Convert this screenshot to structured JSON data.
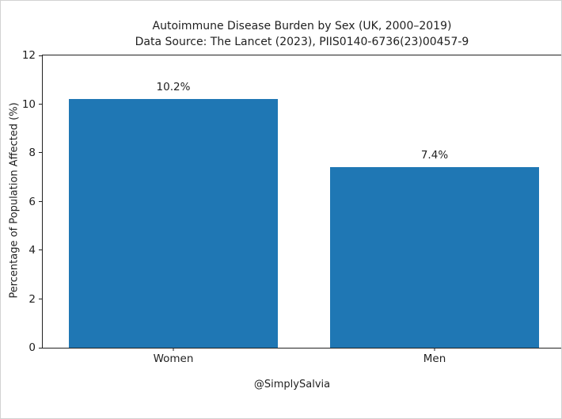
{
  "chart_data": {
    "type": "bar",
    "title": "Autoimmune Disease Burden by Sex (UK, 2000–2019)",
    "subtitle": "Data Source: The Lancet (2023), PIIS0140-6736(23)00457-9",
    "categories": [
      "Women",
      "Men"
    ],
    "values": [
      10.2,
      7.4
    ],
    "value_labels": [
      "10.2%",
      "7.4%"
    ],
    "xlabel": "",
    "ylabel": "Percentage of Population Affected (%)",
    "ylim": [
      0,
      12
    ],
    "yticks": [
      0,
      2,
      4,
      6,
      8,
      10,
      12
    ],
    "bar_color": "#1f77b4",
    "grid": false,
    "legend": false
  },
  "footer": {
    "credit": "@SimplySalvia"
  }
}
